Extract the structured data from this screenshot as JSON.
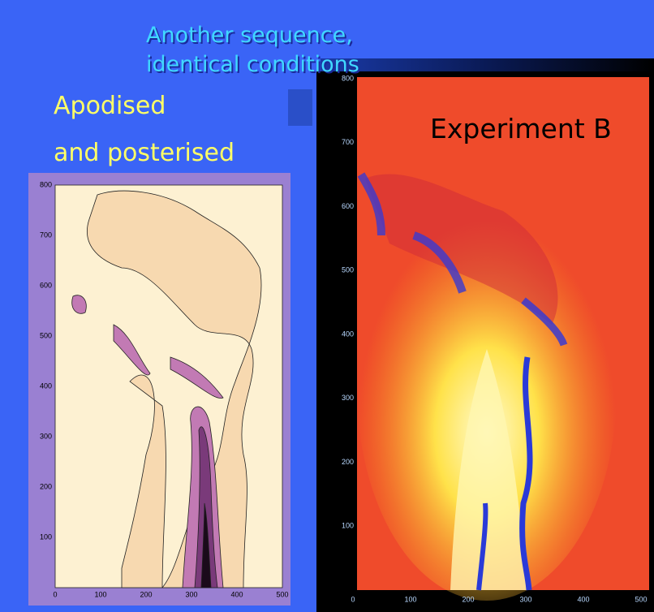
{
  "header": {
    "title_lines": [
      "Another sequence,",
      "identical conditions"
    ]
  },
  "left_panel": {
    "label_lines": [
      "Apodised",
      "and posterised"
    ],
    "xticks": [
      0,
      100,
      200,
      300,
      400,
      500
    ],
    "yticks": [
      100,
      200,
      300,
      400,
      500,
      600,
      700,
      800
    ]
  },
  "right_panel": {
    "label": "Experiment B",
    "xticks": [
      0,
      100,
      200,
      300,
      400,
      500
    ],
    "yticks": [
      100,
      200,
      300,
      400,
      500,
      600,
      700,
      800
    ]
  }
}
